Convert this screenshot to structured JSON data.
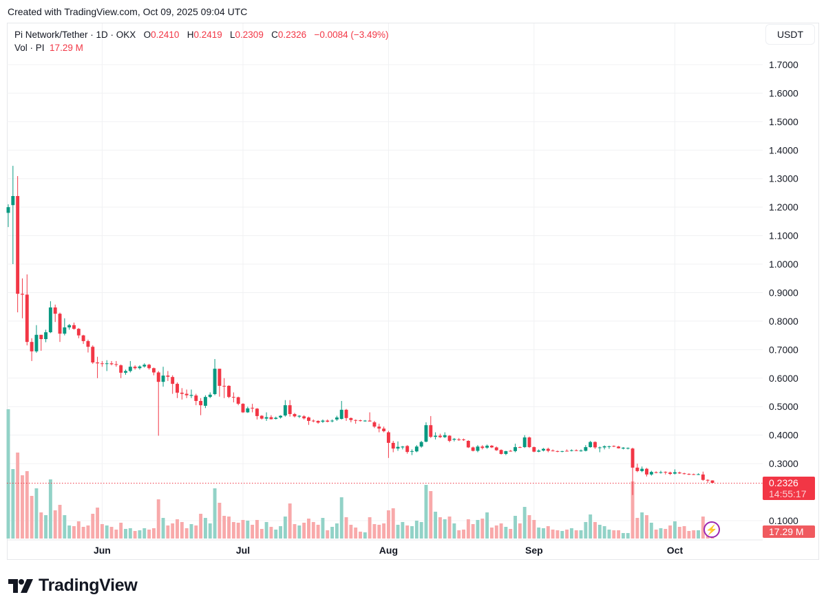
{
  "header": {
    "created": "Created with TradingView.com, Oct 09, 2025 09:04 UTC"
  },
  "legend": {
    "symbol": "Pi Network/Tether · 1D · OKX",
    "o_label": "O",
    "o": "0.2410",
    "h_label": "H",
    "h": "0.2419",
    "l_label": "L",
    "l": "0.2309",
    "c_label": "C",
    "c": "0.2326",
    "change": "−0.0084 (−3.49%)",
    "vol_label": "Vol · PI",
    "vol": "17.29 M"
  },
  "price_axis": {
    "unit": "USDT"
  },
  "last_price": {
    "price": "0.2326",
    "countdown": "14:55:17",
    "volume": "17.29 M"
  },
  "branding": {
    "logo_text": "TradingView"
  },
  "colors": {
    "up": "#089981",
    "down": "#f23645",
    "vol_up": "#92d2c7",
    "vol_down": "#f8a9aa",
    "grid": "#f0f1f3"
  },
  "chart_data": {
    "type": "candlestick",
    "title": "Pi Network/Tether · 1D · OKX",
    "ylabel": "USDT",
    "ylim": [
      0.0535,
      1.78
    ],
    "yticks": [
      "1.7000",
      "1.6000",
      "1.5000",
      "1.4000",
      "1.3000",
      "1.2000",
      "1.1000",
      "1.0000",
      "0.9000",
      "0.8000",
      "0.7000",
      "0.6000",
      "0.5000",
      "0.4000",
      "0.3000",
      "0.1000"
    ],
    "xticks": [
      {
        "label": "Jun",
        "index": 20
      },
      {
        "label": "Jul",
        "index": 50
      },
      {
        "label": "Aug",
        "index": 81
      },
      {
        "label": "Sep",
        "index": 112
      },
      {
        "label": "Oct",
        "index": 142
      }
    ],
    "volume_unit": "M",
    "candles_ohlcv": [
      [
        1.18,
        1.21,
        1.13,
        1.2,
        564
      ],
      [
        1.207,
        1.345,
        1.0,
        1.239,
        303
      ],
      [
        1.239,
        1.309,
        0.831,
        0.896,
        375
      ],
      [
        0.896,
        0.95,
        0.81,
        0.893,
        276
      ],
      [
        0.893,
        0.964,
        0.715,
        0.727,
        294
      ],
      [
        0.727,
        0.74,
        0.66,
        0.694,
        186
      ],
      [
        0.694,
        0.786,
        0.689,
        0.752,
        219
      ],
      [
        0.752,
        0.752,
        0.696,
        0.737,
        114
      ],
      [
        0.737,
        0.77,
        0.726,
        0.761,
        102
      ],
      [
        0.761,
        0.87,
        0.758,
        0.848,
        258
      ],
      [
        0.848,
        0.858,
        0.797,
        0.826,
        123
      ],
      [
        0.826,
        0.83,
        0.727,
        0.756,
        147
      ],
      [
        0.756,
        0.81,
        0.75,
        0.778,
        102
      ],
      [
        0.778,
        0.79,
        0.77,
        0.786,
        57
      ],
      [
        0.786,
        0.795,
        0.77,
        0.773,
        54
      ],
      [
        0.773,
        0.776,
        0.74,
        0.75,
        75
      ],
      [
        0.75,
        0.752,
        0.72,
        0.73,
        51
      ],
      [
        0.73,
        0.735,
        0.69,
        0.71,
        57
      ],
      [
        0.71,
        0.715,
        0.65,
        0.655,
        108
      ],
      [
        0.655,
        0.675,
        0.6,
        0.652,
        135
      ],
      [
        0.652,
        0.66,
        0.64,
        0.65,
        63
      ],
      [
        0.65,
        0.663,
        0.625,
        0.652,
        57
      ],
      [
        0.652,
        0.66,
        0.645,
        0.649,
        51
      ],
      [
        0.649,
        0.66,
        0.64,
        0.647,
        39
      ],
      [
        0.645,
        0.648,
        0.6,
        0.619,
        69
      ],
      [
        0.619,
        0.63,
        0.612,
        0.625,
        42
      ],
      [
        0.625,
        0.66,
        0.62,
        0.64,
        45
      ],
      [
        0.64,
        0.645,
        0.63,
        0.635,
        33
      ],
      [
        0.635,
        0.645,
        0.63,
        0.641,
        36
      ],
      [
        0.641,
        0.652,
        0.637,
        0.647,
        45
      ],
      [
        0.647,
        0.65,
        0.63,
        0.635,
        39
      ],
      [
        0.635,
        0.637,
        0.61,
        0.62,
        45
      ],
      [
        0.62,
        0.625,
        0.398,
        0.587,
        171
      ],
      [
        0.587,
        0.64,
        0.57,
        0.609,
        90
      ],
      [
        0.609,
        0.625,
        0.59,
        0.605,
        57
      ],
      [
        0.604,
        0.61,
        0.545,
        0.58,
        66
      ],
      [
        0.58,
        0.585,
        0.53,
        0.549,
        84
      ],
      [
        0.549,
        0.565,
        0.525,
        0.545,
        72
      ],
      [
        0.545,
        0.56,
        0.53,
        0.54,
        45
      ],
      [
        0.538,
        0.56,
        0.53,
        0.541,
        63
      ],
      [
        0.539,
        0.545,
        0.505,
        0.52,
        57
      ],
      [
        0.52,
        0.53,
        0.47,
        0.505,
        108
      ],
      [
        0.503,
        0.54,
        0.495,
        0.534,
        90
      ],
      [
        0.534,
        0.55,
        0.53,
        0.542,
        66
      ],
      [
        0.544,
        0.667,
        0.54,
        0.633,
        219
      ],
      [
        0.633,
        0.633,
        0.535,
        0.573,
        156
      ],
      [
        0.573,
        0.6,
        0.53,
        0.572,
        99
      ],
      [
        0.573,
        0.575,
        0.53,
        0.534,
        96
      ],
      [
        0.534,
        0.55,
        0.515,
        0.533,
        72
      ],
      [
        0.533,
        0.535,
        0.505,
        0.51,
        69
      ],
      [
        0.51,
        0.512,
        0.478,
        0.48,
        81
      ],
      [
        0.48,
        0.5,
        0.478,
        0.494,
        78
      ],
      [
        0.496,
        0.51,
        0.48,
        0.494,
        60
      ],
      [
        0.493,
        0.495,
        0.455,
        0.467,
        81
      ],
      [
        0.468,
        0.47,
        0.455,
        0.458,
        42
      ],
      [
        0.458,
        0.48,
        0.45,
        0.463,
        72
      ],
      [
        0.463,
        0.47,
        0.455,
        0.456,
        51
      ],
      [
        0.457,
        0.465,
        0.455,
        0.461,
        39
      ],
      [
        0.462,
        0.47,
        0.458,
        0.468,
        54
      ],
      [
        0.469,
        0.523,
        0.465,
        0.505,
        96
      ],
      [
        0.505,
        0.523,
        0.465,
        0.474,
        153
      ],
      [
        0.474,
        0.478,
        0.462,
        0.466,
        63
      ],
      [
        0.465,
        0.47,
        0.46,
        0.468,
        57
      ],
      [
        0.466,
        0.47,
        0.455,
        0.459,
        69
      ],
      [
        0.462,
        0.465,
        0.436,
        0.45,
        87
      ],
      [
        0.451,
        0.455,
        0.445,
        0.45,
        72
      ],
      [
        0.45,
        0.452,
        0.44,
        0.444,
        60
      ],
      [
        0.447,
        0.455,
        0.443,
        0.451,
        90
      ],
      [
        0.451,
        0.455,
        0.445,
        0.447,
        36
      ],
      [
        0.449,
        0.455,
        0.445,
        0.451,
        51
      ],
      [
        0.455,
        0.468,
        0.45,
        0.462,
        66
      ],
      [
        0.457,
        0.52,
        0.455,
        0.489,
        180
      ],
      [
        0.489,
        0.492,
        0.45,
        0.46,
        93
      ],
      [
        0.46,
        0.462,
        0.445,
        0.453,
        60
      ],
      [
        0.453,
        0.455,
        0.44,
        0.452,
        48
      ],
      [
        0.452,
        0.454,
        0.448,
        0.45,
        30
      ],
      [
        0.449,
        0.453,
        0.447,
        0.451,
        27
      ],
      [
        0.451,
        0.48,
        0.448,
        0.448,
        93
      ],
      [
        0.445,
        0.45,
        0.425,
        0.43,
        63
      ],
      [
        0.43,
        0.44,
        0.41,
        0.423,
        60
      ],
      [
        0.423,
        0.43,
        0.41,
        0.414,
        66
      ],
      [
        0.41,
        0.415,
        0.32,
        0.373,
        123
      ],
      [
        0.373,
        0.38,
        0.34,
        0.353,
        132
      ],
      [
        0.353,
        0.378,
        0.345,
        0.359,
        60
      ],
      [
        0.357,
        0.362,
        0.35,
        0.36,
        72
      ],
      [
        0.362,
        0.365,
        0.335,
        0.341,
        57
      ],
      [
        0.342,
        0.35,
        0.33,
        0.344,
        54
      ],
      [
        0.343,
        0.365,
        0.34,
        0.36,
        78
      ],
      [
        0.36,
        0.38,
        0.356,
        0.376,
        72
      ],
      [
        0.377,
        0.445,
        0.375,
        0.435,
        234
      ],
      [
        0.435,
        0.467,
        0.39,
        0.394,
        207
      ],
      [
        0.394,
        0.41,
        0.385,
        0.398,
        117
      ],
      [
        0.398,
        0.405,
        0.39,
        0.393,
        93
      ],
      [
        0.393,
        0.41,
        0.39,
        0.4,
        84
      ],
      [
        0.398,
        0.4,
        0.375,
        0.38,
        96
      ],
      [
        0.384,
        0.39,
        0.378,
        0.387,
        66
      ],
      [
        0.385,
        0.39,
        0.38,
        0.384,
        36
      ],
      [
        0.385,
        0.388,
        0.38,
        0.383,
        39
      ],
      [
        0.38,
        0.382,
        0.355,
        0.357,
        84
      ],
      [
        0.357,
        0.36,
        0.343,
        0.345,
        63
      ],
      [
        0.345,
        0.365,
        0.34,
        0.36,
        81
      ],
      [
        0.36,
        0.365,
        0.35,
        0.355,
        87
      ],
      [
        0.356,
        0.367,
        0.352,
        0.363,
        114
      ],
      [
        0.363,
        0.365,
        0.355,
        0.357,
        48
      ],
      [
        0.357,
        0.36,
        0.345,
        0.347,
        57
      ],
      [
        0.348,
        0.35,
        0.332,
        0.334,
        66
      ],
      [
        0.334,
        0.345,
        0.33,
        0.344,
        51
      ],
      [
        0.345,
        0.348,
        0.342,
        0.344,
        42
      ],
      [
        0.344,
        0.37,
        0.34,
        0.358,
        99
      ],
      [
        0.358,
        0.36,
        0.355,
        0.357,
        66
      ],
      [
        0.358,
        0.4,
        0.355,
        0.392,
        138
      ],
      [
        0.392,
        0.395,
        0.355,
        0.358,
        102
      ],
      [
        0.358,
        0.36,
        0.34,
        0.342,
        81
      ],
      [
        0.342,
        0.35,
        0.34,
        0.346,
        48
      ],
      [
        0.346,
        0.355,
        0.343,
        0.352,
        45
      ],
      [
        0.352,
        0.356,
        0.34,
        0.345,
        54
      ],
      [
        0.346,
        0.35,
        0.343,
        0.345,
        39
      ],
      [
        0.344,
        0.346,
        0.34,
        0.343,
        36
      ],
      [
        0.342,
        0.345,
        0.34,
        0.344,
        33
      ],
      [
        0.345,
        0.35,
        0.343,
        0.344,
        39
      ],
      [
        0.345,
        0.35,
        0.343,
        0.347,
        45
      ],
      [
        0.347,
        0.35,
        0.344,
        0.346,
        36
      ],
      [
        0.344,
        0.35,
        0.342,
        0.346,
        36
      ],
      [
        0.345,
        0.365,
        0.343,
        0.358,
        72
      ],
      [
        0.358,
        0.38,
        0.356,
        0.376,
        105
      ],
      [
        0.376,
        0.378,
        0.352,
        0.357,
        72
      ],
      [
        0.356,
        0.36,
        0.34,
        0.357,
        60
      ],
      [
        0.357,
        0.364,
        0.35,
        0.361,
        54
      ],
      [
        0.36,
        0.363,
        0.352,
        0.361,
        39
      ],
      [
        0.362,
        0.364,
        0.358,
        0.36,
        36
      ],
      [
        0.36,
        0.362,
        0.353,
        0.354,
        36
      ],
      [
        0.353,
        0.358,
        0.35,
        0.356,
        24
      ],
      [
        0.354,
        0.357,
        0.35,
        0.355,
        24
      ],
      [
        0.353,
        0.356,
        0.19,
        0.286,
        249
      ],
      [
        0.286,
        0.3,
        0.27,
        0.274,
        90
      ],
      [
        0.274,
        0.29,
        0.27,
        0.282,
        114
      ],
      [
        0.282,
        0.285,
        0.255,
        0.262,
        102
      ],
      [
        0.262,
        0.275,
        0.258,
        0.271,
        69
      ],
      [
        0.27,
        0.273,
        0.266,
        0.269,
        39
      ],
      [
        0.269,
        0.275,
        0.265,
        0.27,
        45
      ],
      [
        0.271,
        0.273,
        0.262,
        0.269,
        42
      ],
      [
        0.269,
        0.272,
        0.26,
        0.264,
        57
      ],
      [
        0.265,
        0.28,
        0.262,
        0.27,
        75
      ],
      [
        0.269,
        0.272,
        0.264,
        0.266,
        51
      ],
      [
        0.266,
        0.268,
        0.262,
        0.264,
        54
      ],
      [
        0.264,
        0.266,
        0.26,
        0.262,
        33
      ],
      [
        0.263,
        0.265,
        0.26,
        0.262,
        36
      ],
      [
        0.262,
        0.266,
        0.26,
        0.263,
        36
      ],
      [
        0.262,
        0.272,
        0.24,
        0.243,
        96
      ],
      [
        0.243,
        0.245,
        0.233,
        0.241,
        42
      ],
      [
        0.241,
        0.2419,
        0.2309,
        0.2326,
        17.29
      ]
    ]
  }
}
